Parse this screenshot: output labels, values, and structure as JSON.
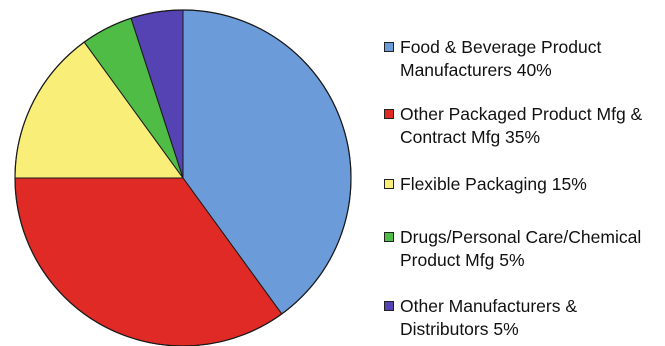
{
  "chart_data": {
    "type": "pie",
    "title": "",
    "start_angle_deg": 0,
    "direction": "clockwise",
    "legend_position": "right",
    "slices": [
      {
        "label": "Food & Beverage Product\nManufacturers 40%",
        "value": 40,
        "color": "#6b9bd8"
      },
      {
        "label": "Other Packaged Product Mfg &\nContract Mfg 35%",
        "value": 35,
        "color": "#e02a26"
      },
      {
        "label": "Flexible Packaging 15%",
        "value": 15,
        "color": "#f8ee78"
      },
      {
        "label": "Drugs/Personal Care/Chemical\nProduct Mfg 5%",
        "value": 5,
        "color": "#4fbc46"
      },
      {
        "label": "Other Manufacturers &\nDistributors 5%",
        "value": 5,
        "color": "#5543b3"
      }
    ]
  }
}
